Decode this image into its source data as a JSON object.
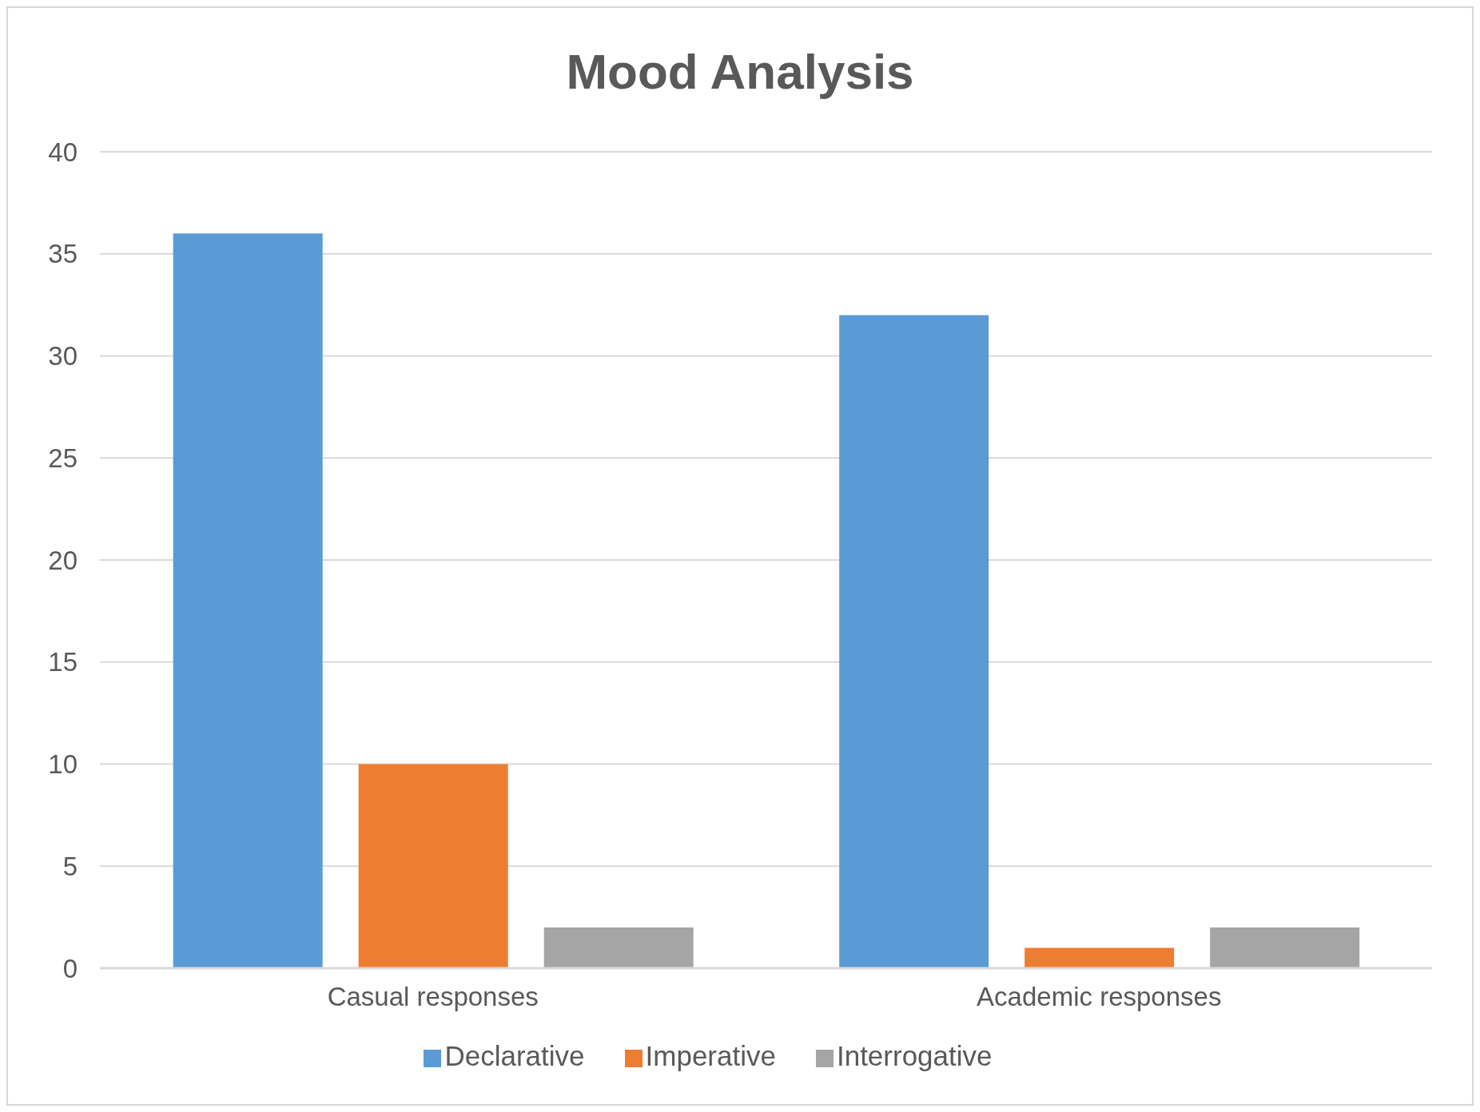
{
  "chart_data": {
    "type": "bar",
    "title": "Mood Analysis",
    "categories": [
      "Casual responses",
      "Academic responses"
    ],
    "series": [
      {
        "name": "Declarative",
        "color": "#5b9bd5",
        "values": [
          36,
          32
        ]
      },
      {
        "name": "Imperative",
        "color": "#ed7d31",
        "values": [
          10,
          1
        ]
      },
      {
        "name": "Interrogative",
        "color": "#a5a5a5",
        "values": [
          2,
          2
        ]
      }
    ],
    "ylim": [
      0,
      40
    ],
    "yticks": [
      0,
      5,
      10,
      15,
      20,
      25,
      30,
      35,
      40
    ],
    "grid": "y",
    "legend": "bottom"
  }
}
